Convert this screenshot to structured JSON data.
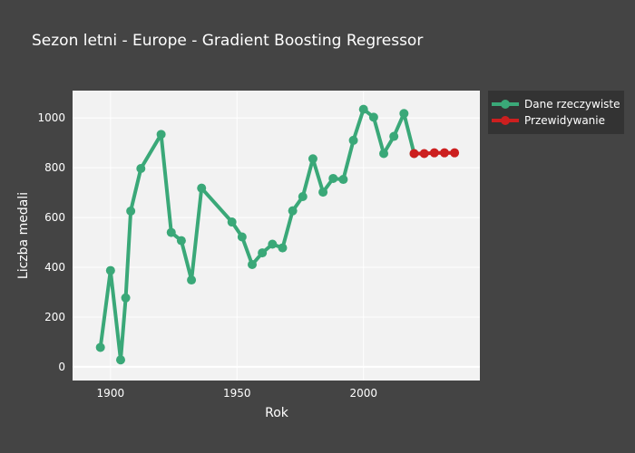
{
  "chart_data": {
    "type": "line",
    "title": "Sezon letni - Europe - Gradient Boosting Regressor",
    "xlabel": "Rok",
    "ylabel": "Liczba medali",
    "xlim": [
      1885,
      2046
    ],
    "ylim": [
      -55,
      1110
    ],
    "x_ticks": [
      "1900",
      "1950",
      "2000"
    ],
    "y_ticks": [
      "0",
      "200",
      "400",
      "600",
      "800",
      "1000"
    ],
    "grid": true,
    "legend_position": "top-right-outside",
    "series": [
      {
        "name": "Dane rzeczywiste",
        "color": "#3aa878",
        "x": [
          1896,
          1900,
          1904,
          1906,
          1908,
          1912,
          1920,
          1924,
          1928,
          1932,
          1936,
          1948,
          1952,
          1956,
          1960,
          1964,
          1968,
          1972,
          1976,
          1980,
          1984,
          1988,
          1992,
          1996,
          2000,
          2004,
          2008,
          2012,
          2016,
          2020
        ],
        "y": [
          78,
          387,
          28,
          277,
          626,
          797,
          934,
          540,
          507,
          349,
          718,
          582,
          522,
          411,
          458,
          493,
          478,
          627,
          684,
          836,
          702,
          757,
          753,
          910,
          1035,
          1003,
          857,
          926,
          1018,
          857
        ]
      },
      {
        "name": "Przewidywanie",
        "color": "#cc1f1f",
        "x": [
          2020,
          2024,
          2028,
          2032,
          2036
        ],
        "y": [
          857,
          857,
          860,
          860,
          860
        ]
      }
    ]
  }
}
